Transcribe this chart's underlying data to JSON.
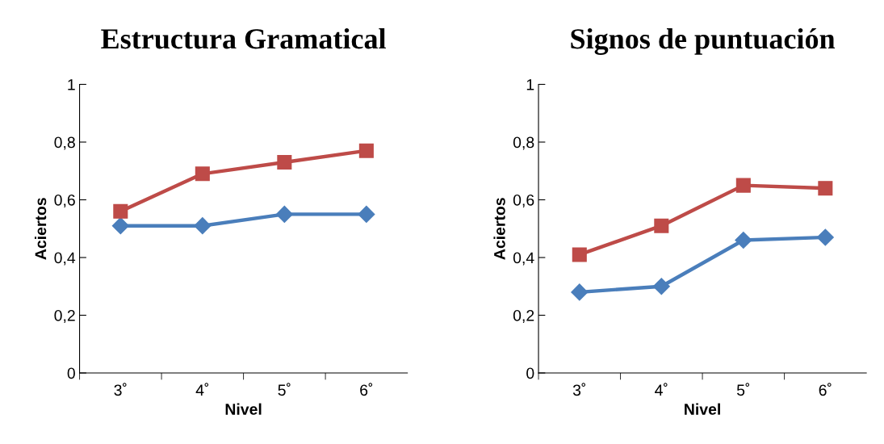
{
  "chart_data": [
    {
      "type": "line",
      "title": "Estructura Gramatical",
      "xlabel": "Nivel",
      "ylabel": "Aciertos",
      "categories": [
        "3˚",
        "4˚",
        "5˚",
        "6˚"
      ],
      "series": [
        {
          "color": "#4a7ebb",
          "marker": "diamond",
          "values": [
            0.51,
            0.51,
            0.55,
            0.55
          ]
        },
        {
          "color": "#be4b48",
          "marker": "square",
          "values": [
            0.56,
            0.69,
            0.73,
            0.77
          ]
        }
      ],
      "ylim": [
        0,
        1
      ],
      "yticks": [
        0,
        {
          "value": 0.2,
          "label": "0,2"
        },
        {
          "value": 0.4,
          "label": "0,4"
        },
        {
          "value": 0.6,
          "label": "0,6"
        },
        {
          "value": 0.8,
          "label": "0,8"
        },
        1
      ],
      "grid": false,
      "legend": false,
      "line_style": "solid"
    },
    {
      "type": "line",
      "title": "Signos de puntuación",
      "xlabel": "Nivel",
      "ylabel": "Aciertos",
      "categories": [
        "3˚",
        "4˚",
        "5˚",
        "6˚"
      ],
      "series": [
        {
          "color": "#4a7ebb",
          "marker": "diamond",
          "values": [
            0.28,
            0.3,
            0.46,
            0.47
          ]
        },
        {
          "color": "#be4b48",
          "marker": "square",
          "values": [
            0.41,
            0.51,
            0.65,
            0.64
          ]
        }
      ],
      "ylim": [
        0,
        1
      ],
      "yticks": [
        0,
        {
          "value": 0.2,
          "label": "0,2"
        },
        {
          "value": 0.4,
          "label": "0,4"
        },
        {
          "value": 0.6,
          "label": "0,6"
        },
        {
          "value": 0.8,
          "label": "0,8"
        },
        1
      ],
      "grid": false,
      "legend": false,
      "line_style": "solid"
    }
  ]
}
